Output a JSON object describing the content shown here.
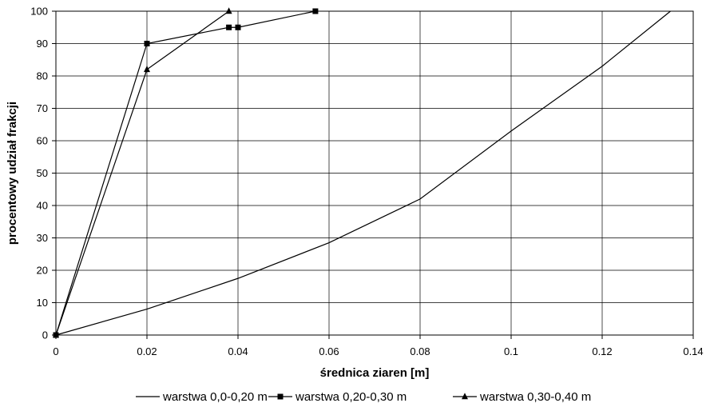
{
  "chart_data": {
    "type": "line",
    "title": "",
    "xlabel": "średnica ziaren [m]",
    "ylabel": "procentowy udział frakcji",
    "xlim": [
      0,
      0.14
    ],
    "ylim": [
      0,
      100
    ],
    "x_ticks": [
      0,
      0.02,
      0.04,
      0.06,
      0.08,
      0.1,
      0.12,
      0.14
    ],
    "x_tick_labels": [
      "0",
      "0.02",
      "0.04",
      "0.06",
      "0.08",
      "0.1",
      "0.12",
      "0.14"
    ],
    "y_ticks": [
      0,
      10,
      20,
      30,
      40,
      50,
      60,
      70,
      80,
      90,
      100
    ],
    "y_tick_labels": [
      "0",
      "10",
      "20",
      "30",
      "40",
      "50",
      "60",
      "70",
      "80",
      "90",
      "100"
    ],
    "grid": true,
    "legend_position": "bottom",
    "series": [
      {
        "name": "warstwa 0,0-0,20 m",
        "marker": "none",
        "color": "#000000",
        "x": [
          0,
          0.02,
          0.04,
          0.06,
          0.08,
          0.1,
          0.12,
          0.135
        ],
        "y": [
          0,
          8,
          17.5,
          28.5,
          42,
          63,
          83,
          100
        ]
      },
      {
        "name": "warstwa 0,20-0,30 m",
        "marker": "square",
        "color": "#000000",
        "x": [
          0,
          0.02,
          0.038,
          0.04,
          0.057
        ],
        "y": [
          0,
          90,
          95,
          95,
          100
        ]
      },
      {
        "name": "warstwa 0,30-0,40 m",
        "marker": "triangle",
        "color": "#000000",
        "x": [
          0,
          0.02,
          0.038
        ],
        "y": [
          0,
          82,
          100
        ]
      }
    ]
  }
}
